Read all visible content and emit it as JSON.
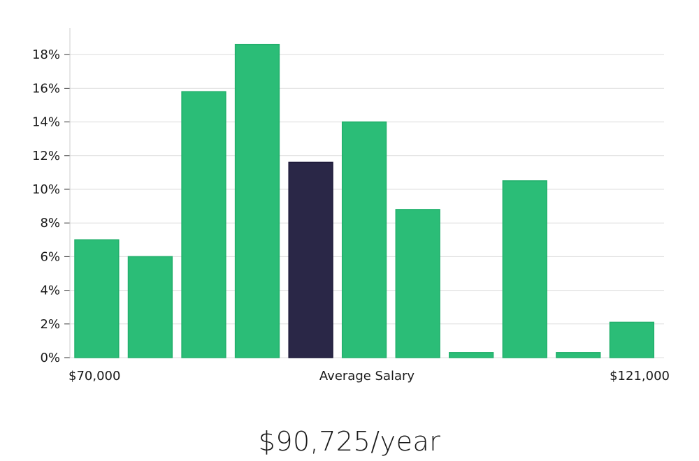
{
  "chart_data": {
    "type": "bar",
    "title": "",
    "xlabel": "Average Salary",
    "ylabel": "",
    "ylim": [
      0,
      19.5
    ],
    "yticks": [
      "0%",
      "2%",
      "4%",
      "6%",
      "8%",
      "10%",
      "12%",
      "14%",
      "16%",
      "18%"
    ],
    "x_range_labels": {
      "min": "$70,000",
      "center": "Average Salary",
      "max": "$121,000"
    },
    "values": [
      7.0,
      6.0,
      15.8,
      18.6,
      11.6,
      14.0,
      8.8,
      0.3,
      10.5,
      0.3,
      2.1
    ],
    "highlight_index": 4,
    "colors": {
      "bar": "#2bbd77",
      "highlight": "#2a2747",
      "grid": "#dcdcdc",
      "axis": "#cccccc"
    },
    "grid": true
  },
  "footer": {
    "salary_text": "$90,725/year"
  }
}
